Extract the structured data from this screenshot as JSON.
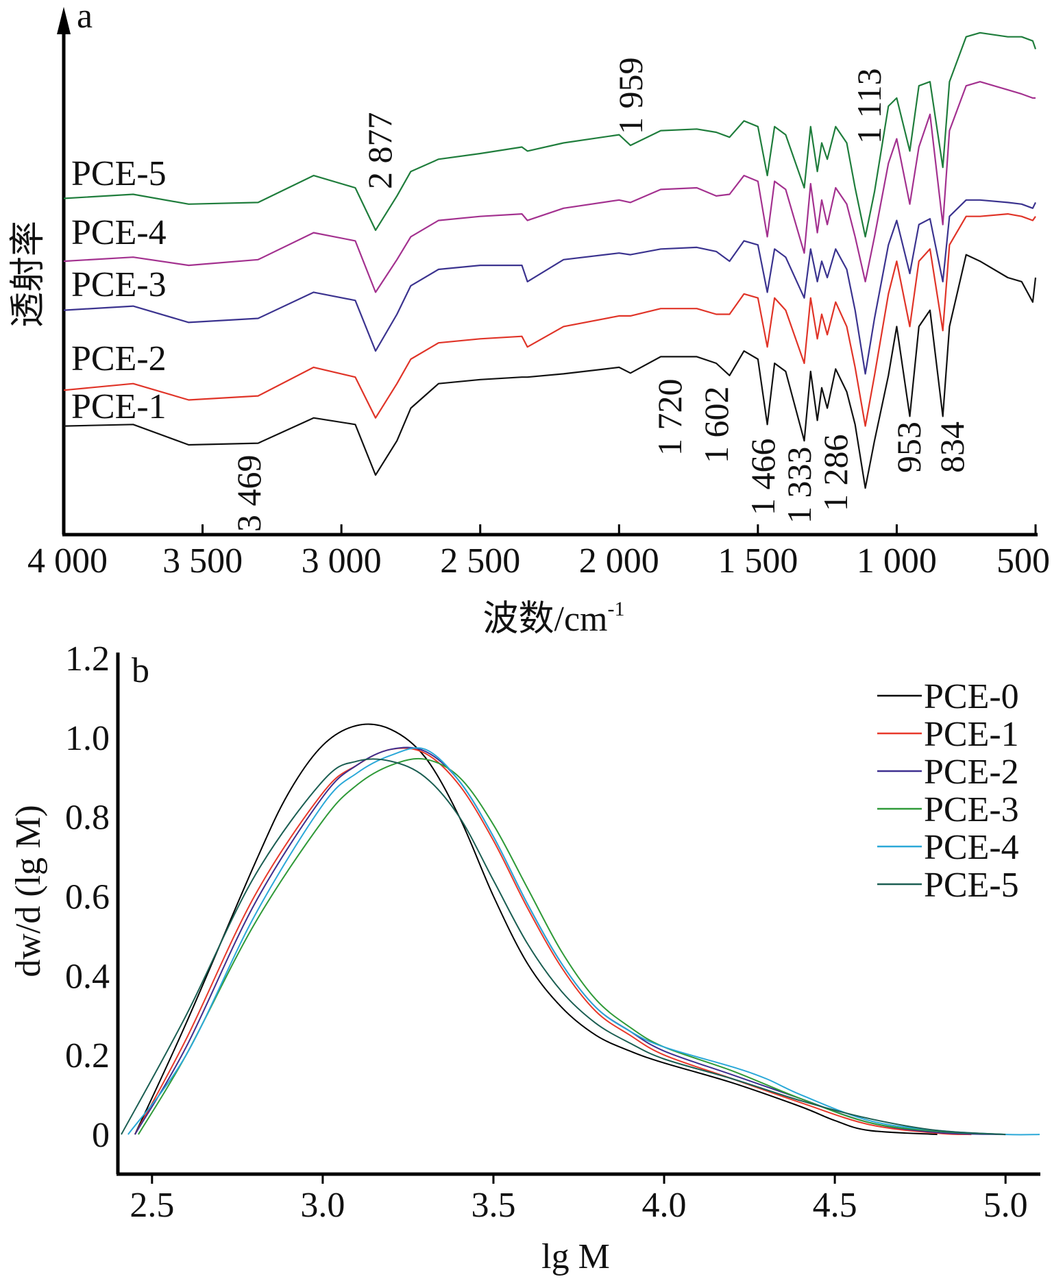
{
  "chart_data": [
    {
      "type": "line",
      "panel_label": "a",
      "title": "",
      "xlabel": "波数/cm",
      "xlabel_sup": "-1",
      "ylabel": "透射率",
      "xlim": [
        4000,
        500
      ],
      "ylim": [
        0,
        640
      ],
      "y_units": "relative transmittance, a.u. (curves vertically offset)",
      "xticks": [
        4000,
        3500,
        3000,
        2500,
        2000,
        1500,
        1000,
        500
      ],
      "xtick_labels": [
        "4 000",
        "3 500",
        "3 000",
        "2 500",
        "2 000",
        "1 500",
        "1 000",
        "500"
      ],
      "x": [
        4000,
        3750,
        3550,
        3300,
        3100,
        2950,
        2877,
        2800,
        2750,
        2650,
        2500,
        2350,
        2330,
        2200,
        2000,
        1959,
        1850,
        1720,
        1650,
        1602,
        1550,
        1500,
        1466,
        1440,
        1400,
        1333,
        1310,
        1286,
        1270,
        1250,
        1220,
        1180,
        1150,
        1113,
        1080,
        1030,
        1000,
        953,
        920,
        880,
        834,
        810,
        750,
        700,
        600,
        550,
        510,
        500
      ],
      "series": [
        {
          "name": "PCE-1",
          "color": "#111111",
          "values": [
            133,
            135,
            110,
            112,
            143,
            135,
            73,
            115,
            155,
            185,
            190,
            193,
            193,
            197,
            205,
            198,
            218,
            218,
            210,
            195,
            225,
            215,
            135,
            210,
            200,
            115,
            200,
            140,
            180,
            155,
            203,
            175,
            135,
            57,
            115,
            195,
            255,
            145,
            255,
            275,
            145,
            255,
            343,
            335,
            315,
            310,
            285,
            315
          ]
        },
        {
          "name": "PCE-2",
          "color": "#e03428",
          "values": [
            177,
            185,
            165,
            170,
            205,
            193,
            143,
            185,
            215,
            235,
            240,
            243,
            230,
            255,
            268,
            268,
            277,
            277,
            270,
            270,
            295,
            290,
            230,
            290,
            275,
            210,
            290,
            240,
            270,
            245,
            285,
            255,
            205,
            133,
            195,
            295,
            335,
            255,
            335,
            350,
            250,
            355,
            390,
            390,
            393,
            390,
            385,
            390
          ]
        },
        {
          "name": "PCE-3",
          "color": "#3b338f",
          "values": [
            275,
            280,
            260,
            265,
            297,
            287,
            225,
            270,
            305,
            325,
            330,
            330,
            310,
            337,
            345,
            343,
            350,
            352,
            347,
            335,
            360,
            355,
            297,
            350,
            340,
            290,
            350,
            310,
            335,
            315,
            350,
            325,
            275,
            197,
            265,
            355,
            385,
            320,
            380,
            387,
            310,
            390,
            410,
            410,
            407,
            405,
            400,
            407
          ]
        },
        {
          "name": "PCE-4",
          "color": "#a3318f",
          "values": [
            335,
            340,
            330,
            337,
            370,
            360,
            297,
            337,
            365,
            385,
            390,
            393,
            385,
            400,
            410,
            407,
            423,
            425,
            415,
            417,
            440,
            433,
            365,
            433,
            423,
            345,
            430,
            370,
            410,
            380,
            425,
            405,
            365,
            310,
            365,
            455,
            485,
            405,
            475,
            515,
            380,
            495,
            550,
            555,
            545,
            540,
            535,
            535
          ]
        },
        {
          "name": "PCE-5",
          "color": "#1f7d3c",
          "values": [
            412,
            417,
            405,
            407,
            440,
            425,
            373,
            415,
            445,
            460,
            467,
            475,
            470,
            480,
            490,
            477,
            495,
            497,
            493,
            487,
            507,
            500,
            440,
            500,
            490,
            425,
            500,
            445,
            480,
            460,
            500,
            480,
            425,
            365,
            420,
            525,
            535,
            470,
            550,
            555,
            450,
            555,
            610,
            615,
            610,
            610,
            605,
            595
          ]
        }
      ],
      "series_labels": [
        "PCE-5",
        "PCE-4",
        "PCE-3",
        "PCE-2",
        "PCE-1"
      ],
      "annotations": [
        "3 469",
        "2 877",
        "1 959",
        "1 720",
        "1 602",
        "1 466",
        "1 333",
        "1 286",
        "1 113",
        "953",
        "834"
      ]
    },
    {
      "type": "line",
      "panel_label": "b",
      "title": "",
      "xlabel": "lg M",
      "ylabel": "dw/d (lg M)",
      "xlim": [
        2.4,
        5.1
      ],
      "ylim": [
        -0.1,
        1.2
      ],
      "xticks": [
        2.5,
        3.0,
        3.5,
        4.0,
        4.5,
        5.0
      ],
      "xtick_labels": [
        "2.5",
        "3.0",
        "3.5",
        "4.0",
        "4.5",
        "5.0"
      ],
      "yticks": [
        0,
        0.2,
        0.4,
        0.6,
        0.8,
        1.0,
        1.2
      ],
      "ytick_labels": [
        "0",
        "0.2",
        "0.4",
        "0.6",
        "0.8",
        "1.0",
        "1.2"
      ],
      "legend_position": "top-right",
      "series": [
        {
          "name": "PCE-0",
          "color": "#000000",
          "x": [
            2.45,
            2.6,
            2.8,
            2.9,
            3.0,
            3.1,
            3.2,
            3.3,
            3.4,
            3.5,
            3.6,
            3.7,
            3.8,
            3.9,
            4.0,
            4.2,
            4.4,
            4.5,
            4.6,
            4.8
          ],
          "values": [
            0,
            0.28,
            0.68,
            0.86,
            0.98,
            1.03,
            1.02,
            0.95,
            0.8,
            0.6,
            0.43,
            0.32,
            0.25,
            0.21,
            0.18,
            0.13,
            0.07,
            0.035,
            0.01,
            0
          ]
        },
        {
          "name": "PCE-1",
          "color": "#e8392a",
          "x": [
            2.45,
            2.6,
            2.8,
            3.0,
            3.1,
            3.2,
            3.3,
            3.4,
            3.5,
            3.6,
            3.7,
            3.8,
            3.9,
            4.0,
            4.2,
            4.4,
            4.6,
            4.8,
            4.9
          ],
          "values": [
            0,
            0.24,
            0.6,
            0.86,
            0.93,
            0.97,
            0.96,
            0.88,
            0.74,
            0.57,
            0.42,
            0.31,
            0.25,
            0.2,
            0.14,
            0.08,
            0.025,
            0.003,
            0
          ]
        },
        {
          "name": "PCE-2",
          "color": "#3d2f8f",
          "x": [
            2.45,
            2.6,
            2.8,
            3.0,
            3.1,
            3.2,
            3.3,
            3.4,
            3.5,
            3.6,
            3.7,
            3.8,
            3.9,
            4.0,
            4.2,
            4.4,
            4.6,
            4.8,
            5.0
          ],
          "values": [
            0,
            0.22,
            0.58,
            0.85,
            0.93,
            0.97,
            0.965,
            0.89,
            0.75,
            0.58,
            0.43,
            0.32,
            0.26,
            0.21,
            0.15,
            0.09,
            0.03,
            0.005,
            0
          ]
        },
        {
          "name": "PCE-3",
          "color": "#2f9a38",
          "x": [
            2.46,
            2.6,
            2.8,
            3.0,
            3.1,
            3.2,
            3.3,
            3.4,
            3.5,
            3.6,
            3.7,
            3.8,
            3.9,
            4.0,
            4.2,
            4.4,
            4.6,
            4.8,
            5.0
          ],
          "values": [
            0,
            0.2,
            0.53,
            0.79,
            0.88,
            0.93,
            0.945,
            0.9,
            0.78,
            0.62,
            0.46,
            0.34,
            0.27,
            0.22,
            0.16,
            0.09,
            0.03,
            0.008,
            0
          ]
        },
        {
          "name": "PCE-4",
          "color": "#2aa8d8",
          "x": [
            2.43,
            2.6,
            2.8,
            3.0,
            3.1,
            3.2,
            3.3,
            3.4,
            3.5,
            3.6,
            3.7,
            3.8,
            3.9,
            4.0,
            4.2,
            4.3,
            4.4,
            4.6,
            4.8,
            5.0,
            5.1
          ],
          "values": [
            0,
            0.2,
            0.55,
            0.83,
            0.91,
            0.955,
            0.97,
            0.89,
            0.75,
            0.58,
            0.43,
            0.32,
            0.26,
            0.22,
            0.17,
            0.14,
            0.1,
            0.035,
            0.01,
            0,
            0
          ]
        },
        {
          "name": "PCE-5",
          "color": "#1b5e52",
          "x": [
            2.41,
            2.6,
            2.8,
            3.0,
            3.1,
            3.2,
            3.3,
            3.4,
            3.5,
            3.6,
            3.7,
            3.8,
            3.9,
            4.0,
            4.2,
            4.4,
            4.6,
            4.8,
            5.0
          ],
          "values": [
            0,
            0.3,
            0.65,
            0.89,
            0.94,
            0.94,
            0.9,
            0.8,
            0.64,
            0.48,
            0.36,
            0.28,
            0.23,
            0.19,
            0.14,
            0.085,
            0.04,
            0.01,
            0
          ]
        }
      ]
    }
  ]
}
